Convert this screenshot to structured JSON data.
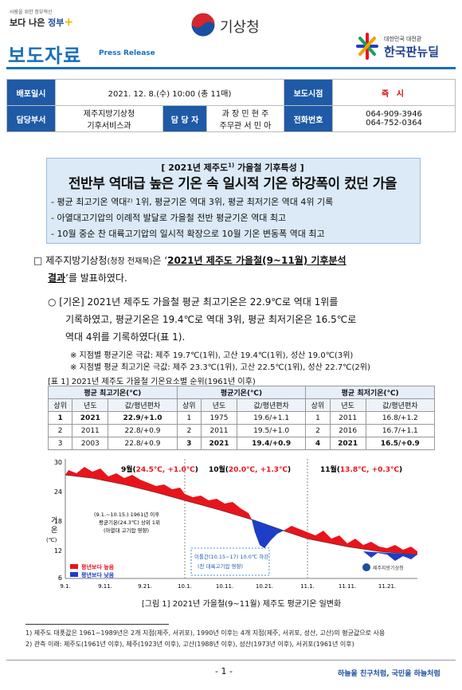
{
  "header": {
    "gov_small": "사람을 위한 정부혁신",
    "gov_main_a": "보다 나은",
    "gov_main_b": "정부",
    "agency": "기상청",
    "press_title": "보도자료",
    "press_en": "Press Release",
    "brand_small": "대한민국 대전환",
    "brand_main": "한국판뉴딜"
  },
  "info": {
    "release_label": "배포일시",
    "release_value": "2021. 12. 8.(수) 10:00 (총 11매)",
    "embargo_label": "보도시점",
    "embargo_value": "즉 시",
    "dept_label": "담당부서",
    "dept_value_1": "제주지방기상청",
    "dept_value_2": "기후서비스과",
    "contact_label": "담 당 자",
    "contact_value_1": "과 장  민 현 주",
    "contact_value_2": "주무관  서 민 아",
    "phone_label": "전화번호",
    "phone_1": "064-909-3946",
    "phone_2": "064-752-0364"
  },
  "summary": {
    "subtitle": "[ 2021년 제주도",
    "subtitle_sup": "1)",
    "subtitle_end": " 가을철 기후특성 ]",
    "headline": "전반부 역대급 높은 기온 속 일시적 기온 하강폭이 컸던 가을",
    "bullets": [
      "- 평균 최고기온 역대²⁾ 1위, 평균기온 역대 3위, 평균 최저기온 역대 4위 기록",
      "- 아열대고기압의 이례적 발달로 가을철 전반 평균기온 역대 최고",
      "- 10월 중순 찬 대륙고기압의 일시적 확장으로 10월 기온 변동폭 역대 최고"
    ]
  },
  "body": {
    "intro_1a": "□ 제주지방기상청",
    "intro_1b": "(청장 전재목)",
    "intro_1c": "은 ‘",
    "intro_1d": "2021년 제주도 가을철(9~11월) 기후분석",
    "intro_2a": "결과",
    "intro_2b": "’를 발표하였다.",
    "p1_1": "○ [기온] 2021년 제주도 가을철 평균 최고기온은 22.9℃로 역대 1위를",
    "p1_2": "기록하였고, 평균기온은 19.4℃로 역대 3위, 평균 최저기온은 16.5℃로",
    "p1_3": "역대 4위를 기록하였다(표 1).",
    "note_1": "※ 지점별 평균기온 극값: 제주 19.7℃(1위), 고산 19.4℃(1위), 성산 19.0℃(3위)",
    "note_2": "※ 지점별 평균 최고기온 극값: 제주 23.3℃(1위), 고산 22.5℃(1위), 성산 22.7℃(2위)"
  },
  "table": {
    "title": "[표 1] 2021년 제주도 가을철 기온요소별 순위(1961년 이후)",
    "groups": [
      "평균 최고기온(℃)",
      "평균기온(℃)",
      "평균 최저기온(℃)"
    ],
    "cols": [
      "상위",
      "년도",
      "값/평년편차"
    ],
    "rows": [
      [
        "1",
        "2021",
        "22.9/+1.0",
        "1",
        "1975",
        "19.6/+1.1",
        "1",
        "2011",
        "16.8/+1.2"
      ],
      [
        "2",
        "2011",
        "22.8/+0.9",
        "2",
        "2011",
        "19.5/+1.0",
        "2",
        "2016",
        "16.7/+1.1"
      ],
      [
        "3",
        "2003",
        "22.8/+0.9",
        "3",
        "2021",
        "19.4/+0.9",
        "4",
        "2021",
        "16.5/+0.9"
      ]
    ]
  },
  "figure": {
    "caption": "[그림 1] 2021년 가을철(9~11월) 제주도 평균기온 일변화",
    "ylabel_1": "기",
    "ylabel_2": "온",
    "ylabel_unit": "(℃)",
    "yticks": [
      "30",
      "24",
      "18",
      "12",
      "6"
    ],
    "xticks": [
      "9.1.",
      "9.11.",
      "9.21.",
      "10.1.",
      "10.11.",
      "10.21.",
      "11.1.",
      "11.11.",
      "11.21."
    ],
    "sep_label": "11",
    "month_sep_label": "10.1.",
    "m9_a": "9월(",
    "m9_b": "24.5℃, +1.0℃",
    "m9_c": ")",
    "m10_a": "10월(",
    "m10_b": "20.0℃, +1.3℃",
    "m10_c": ")",
    "m11_a": "11월(",
    "m11_b": "13.8℃, +0.3℃",
    "m11_c": ")",
    "ann_1": "(9.1.~10.15.) 1961년 이후",
    "ann_2": "평균기온(24.3℃) 상위 1위",
    "ann_3": "(아열대 고기압 영향)",
    "ann_4": "이틀간(10.15~17) 10.0℃ 하강",
    "ann_5": "(찬 대륙고기압 영향)",
    "legend_high": "평년보다 높음",
    "legend_low": "평년보다 낮음",
    "watermark": "제주지방기상청",
    "color_high": "#e8141c",
    "color_low": "#1e3ec8"
  },
  "footnotes": [
    "1) 제주도 대푯값은 1961~1989년은 2개 지점(제주, 서귀포), 1990년 이후는 4개 지점(제주, 서귀포, 성산, 고산)의 평균값으로 사용",
    "2) 관측 이래: 제주도(1961년 이후), 제주(1923년 이후), 고산(1988년 이후), 성산(1973년 이후), 서귀포(1961년 이후)"
  ],
  "footer": {
    "page": "- 1 -",
    "slogan": "하늘을 친구처럼, 국민을 하늘처럼"
  }
}
